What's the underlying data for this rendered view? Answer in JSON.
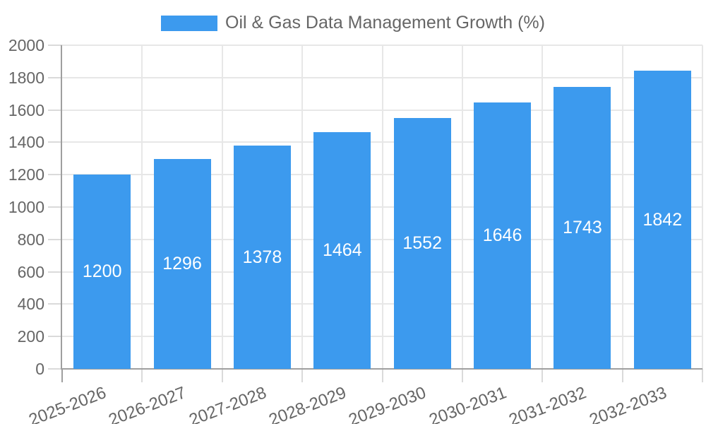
{
  "legend": {
    "label": "Oil & Gas Data Management Growth (%)"
  },
  "colors": {
    "bar": "#3C9AEE",
    "bar_label": "#FFFFFF",
    "axis_text": "#666666",
    "grid_line": "#E7E7E7",
    "tick_mark": "#DADADA",
    "axis_line": "#9F9F9F",
    "background": "#FFFFFF"
  },
  "chart_data": {
    "type": "bar",
    "title": "Oil & Gas Data Management Growth (%)",
    "series_name": "Oil & Gas Data Management Growth (%)",
    "categories": [
      "2025-2026",
      "2026-2027",
      "2027-2028",
      "2028-2029",
      "2029-2030",
      "2030-2031",
      "2031-2032",
      "2032-2033"
    ],
    "values": [
      1200,
      1296,
      1378,
      1464,
      1552,
      1646,
      1743,
      1842
    ],
    "xlabel": "",
    "ylabel": "",
    "ylim": [
      0,
      2000
    ],
    "ytick_step": 200,
    "yticks": [
      0,
      200,
      400,
      600,
      800,
      1000,
      1200,
      1400,
      1600,
      1800,
      2000
    ],
    "grid": true,
    "legend_position": "top-center",
    "bar_labels": "values shown in white, centered inside bars",
    "x_label_rotation_deg": -21
  }
}
